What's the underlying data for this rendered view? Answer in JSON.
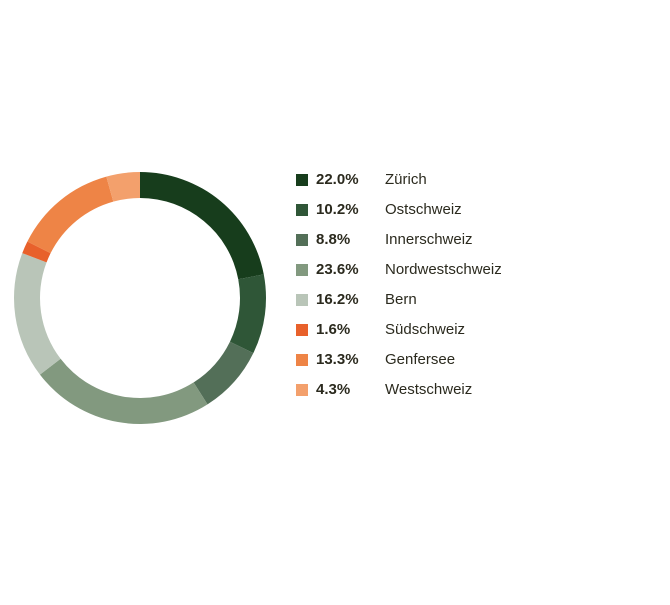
{
  "chart_data": {
    "type": "donut",
    "categories": [
      "Zürich",
      "Ostschweiz",
      "Innerschweiz",
      "Nordwestschweiz",
      "Bern",
      "Südschweiz",
      "Genfersee",
      "Westschweiz"
    ],
    "values": [
      22.0,
      10.2,
      8.8,
      23.6,
      16.2,
      1.6,
      13.3,
      4.3
    ],
    "value_labels": [
      "22.0%",
      "10.2%",
      "8.8%",
      "23.6%",
      "16.2%",
      "1.6%",
      "13.3%",
      "4.3%"
    ],
    "colors": [
      "#173d1c",
      "#2f5637",
      "#536f58",
      "#82997f",
      "#b9c5b8",
      "#e8612b",
      "#ee8446",
      "#f3a06c"
    ]
  }
}
